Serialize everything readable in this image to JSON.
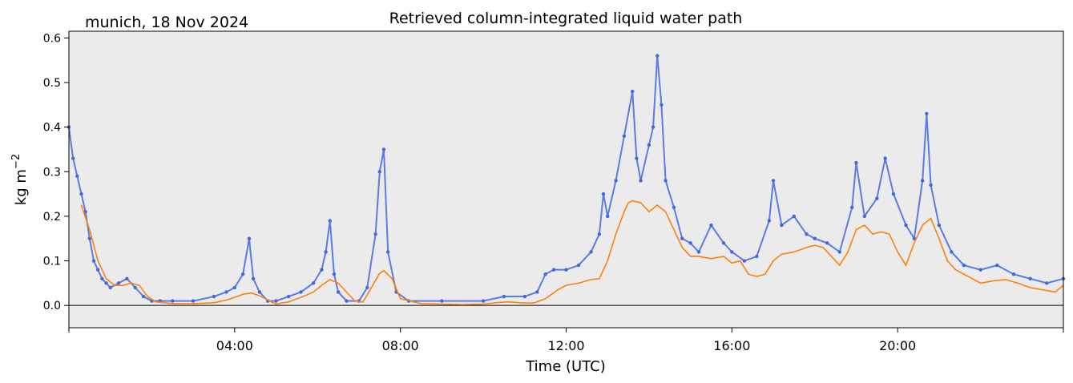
{
  "chart_data": {
    "type": "scatter",
    "title": "Retrieved column-integrated liquid water path",
    "subtitle": "munich, 18 Nov 2024",
    "xlabel": "Time (UTC)",
    "ylabel": "kg m",
    "ylabel_superscript": "−2",
    "xlim": [
      0,
      24
    ],
    "ylim": [
      -0.05,
      0.615
    ],
    "x_ticks": [
      {
        "value": 4,
        "label": "04:00"
      },
      {
        "value": 8,
        "label": "08:00"
      },
      {
        "value": 12,
        "label": "12:00"
      },
      {
        "value": 16,
        "label": "16:00"
      },
      {
        "value": 20,
        "label": "20:00"
      }
    ],
    "x_minor_ticks": [
      0,
      24
    ],
    "y_ticks": [
      {
        "value": 0.0,
        "label": "0.0"
      },
      {
        "value": 0.1,
        "label": "0.1"
      },
      {
        "value": 0.2,
        "label": "0.2"
      },
      {
        "value": 0.3,
        "label": "0.3"
      },
      {
        "value": 0.4,
        "label": "0.4"
      },
      {
        "value": 0.5,
        "label": "0.5"
      },
      {
        "value": 0.6,
        "label": "0.6"
      }
    ],
    "zero_line": 0,
    "background": "#ebebeb",
    "grid": false,
    "series": [
      {
        "kind": "scatter",
        "color": "#4169e1",
        "x": [
          0.0,
          0.1,
          0.2,
          0.3,
          0.4,
          0.5,
          0.6,
          0.7,
          0.8,
          0.9,
          1.0,
          1.2,
          1.4,
          1.6,
          1.8,
          2.0,
          2.2,
          2.5,
          3.0,
          3.5,
          3.8,
          4.0,
          4.2,
          4.35,
          4.45,
          4.6,
          4.8,
          5.0,
          5.3,
          5.6,
          5.9,
          6.1,
          6.2,
          6.3,
          6.4,
          6.5,
          6.7,
          7.0,
          7.2,
          7.4,
          7.5,
          7.6,
          7.7,
          7.9,
          8.2,
          9.0,
          10.0,
          10.5,
          11.0,
          11.3,
          11.5,
          11.7,
          12.0,
          12.3,
          12.6,
          12.8,
          12.9,
          13.0,
          13.2,
          13.4,
          13.6,
          13.7,
          13.8,
          14.0,
          14.1,
          14.2,
          14.3,
          14.4,
          14.6,
          14.8,
          15.0,
          15.2,
          15.5,
          15.8,
          16.0,
          16.3,
          16.6,
          16.9,
          17.0,
          17.2,
          17.5,
          17.8,
          18.0,
          18.3,
          18.6,
          18.9,
          19.0,
          19.2,
          19.5,
          19.7,
          19.9,
          20.2,
          20.4,
          20.6,
          20.7,
          20.8,
          21.0,
          21.3,
          21.6,
          22.0,
          22.4,
          22.8,
          23.2,
          23.6,
          24.0
        ],
        "y": [
          0.4,
          0.33,
          0.29,
          0.25,
          0.21,
          0.15,
          0.1,
          0.08,
          0.06,
          0.05,
          0.04,
          0.05,
          0.06,
          0.04,
          0.02,
          0.01,
          0.01,
          0.01,
          0.01,
          0.02,
          0.03,
          0.04,
          0.07,
          0.15,
          0.06,
          0.03,
          0.01,
          0.01,
          0.02,
          0.03,
          0.05,
          0.08,
          0.12,
          0.19,
          0.07,
          0.03,
          0.01,
          0.01,
          0.04,
          0.16,
          0.3,
          0.35,
          0.12,
          0.03,
          0.01,
          0.01,
          0.01,
          0.02,
          0.02,
          0.03,
          0.07,
          0.08,
          0.08,
          0.09,
          0.12,
          0.16,
          0.25,
          0.2,
          0.28,
          0.38,
          0.48,
          0.33,
          0.28,
          0.36,
          0.4,
          0.56,
          0.45,
          0.28,
          0.22,
          0.15,
          0.14,
          0.12,
          0.18,
          0.14,
          0.12,
          0.1,
          0.11,
          0.19,
          0.28,
          0.18,
          0.2,
          0.16,
          0.15,
          0.14,
          0.12,
          0.22,
          0.32,
          0.2,
          0.24,
          0.33,
          0.25,
          0.18,
          0.15,
          0.28,
          0.43,
          0.27,
          0.18,
          0.12,
          0.09,
          0.08,
          0.09,
          0.07,
          0.06,
          0.05,
          0.06
        ]
      },
      {
        "kind": "line",
        "color": "#ff7f0e",
        "x": [
          0.3,
          0.5,
          0.7,
          0.9,
          1.1,
          1.3,
          1.5,
          1.7,
          1.9,
          2.1,
          2.5,
          3.0,
          3.5,
          3.8,
          4.0,
          4.2,
          4.4,
          4.6,
          4.8,
          5.0,
          5.3,
          5.6,
          5.9,
          6.1,
          6.3,
          6.5,
          6.7,
          6.9,
          7.1,
          7.3,
          7.5,
          7.6,
          7.8,
          8.0,
          8.5,
          9.0,
          9.5,
          10.0,
          10.3,
          10.6,
          10.9,
          11.2,
          11.5,
          11.8,
          12.0,
          12.3,
          12.6,
          12.8,
          13.0,
          13.2,
          13.4,
          13.5,
          13.6,
          13.8,
          14.0,
          14.2,
          14.4,
          14.6,
          14.8,
          15.0,
          15.2,
          15.5,
          15.8,
          16.0,
          16.2,
          16.4,
          16.6,
          16.8,
          17.0,
          17.2,
          17.5,
          17.8,
          18.0,
          18.2,
          18.4,
          18.6,
          18.8,
          19.0,
          19.2,
          19.4,
          19.6,
          19.8,
          20.0,
          20.2,
          20.4,
          20.6,
          20.8,
          21.0,
          21.2,
          21.4,
          21.6,
          21.8,
          22.0,
          22.3,
          22.6,
          22.9,
          23.2,
          23.5,
          23.8,
          24.0
        ],
        "y": [
          0.225,
          0.17,
          0.1,
          0.06,
          0.045,
          0.045,
          0.05,
          0.045,
          0.02,
          0.008,
          0.004,
          0.004,
          0.006,
          0.012,
          0.018,
          0.025,
          0.028,
          0.022,
          0.012,
          0.003,
          0.008,
          0.018,
          0.03,
          0.045,
          0.058,
          0.05,
          0.03,
          0.01,
          0.008,
          0.04,
          0.072,
          0.078,
          0.06,
          0.015,
          0.004,
          0.003,
          0.002,
          0.003,
          0.006,
          0.008,
          0.006,
          0.005,
          0.015,
          0.035,
          0.045,
          0.05,
          0.058,
          0.06,
          0.1,
          0.16,
          0.21,
          0.23,
          0.235,
          0.23,
          0.21,
          0.225,
          0.21,
          0.17,
          0.13,
          0.11,
          0.11,
          0.105,
          0.11,
          0.095,
          0.1,
          0.07,
          0.065,
          0.07,
          0.1,
          0.115,
          0.12,
          0.13,
          0.135,
          0.13,
          0.11,
          0.09,
          0.12,
          0.17,
          0.18,
          0.16,
          0.165,
          0.16,
          0.12,
          0.09,
          0.14,
          0.18,
          0.195,
          0.15,
          0.1,
          0.08,
          0.07,
          0.06,
          0.05,
          0.055,
          0.058,
          0.05,
          0.04,
          0.035,
          0.03,
          0.045
        ]
      }
    ]
  }
}
